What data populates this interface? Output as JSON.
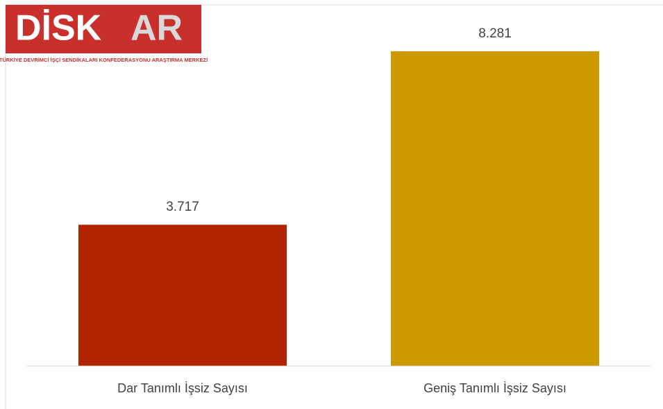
{
  "logo": {
    "name_main": "DİSK",
    "name_accent": "AR",
    "tagline": "TÜRKİYE DEVRİMCİ İŞÇİ SENDİKALARI KONFEDERASYONU ARAŞTIRMA MERKEZİ"
  },
  "chart_data": {
    "type": "bar",
    "categories": [
      "Dar Tanımlı İşsiz Sayısı",
      "Geniş Tanımlı İşsiz Sayısı"
    ],
    "values": [
      3717,
      8281
    ],
    "value_labels": [
      "3.717",
      "8.281"
    ],
    "colors": [
      "#b22400",
      "#cc9900"
    ]
  }
}
